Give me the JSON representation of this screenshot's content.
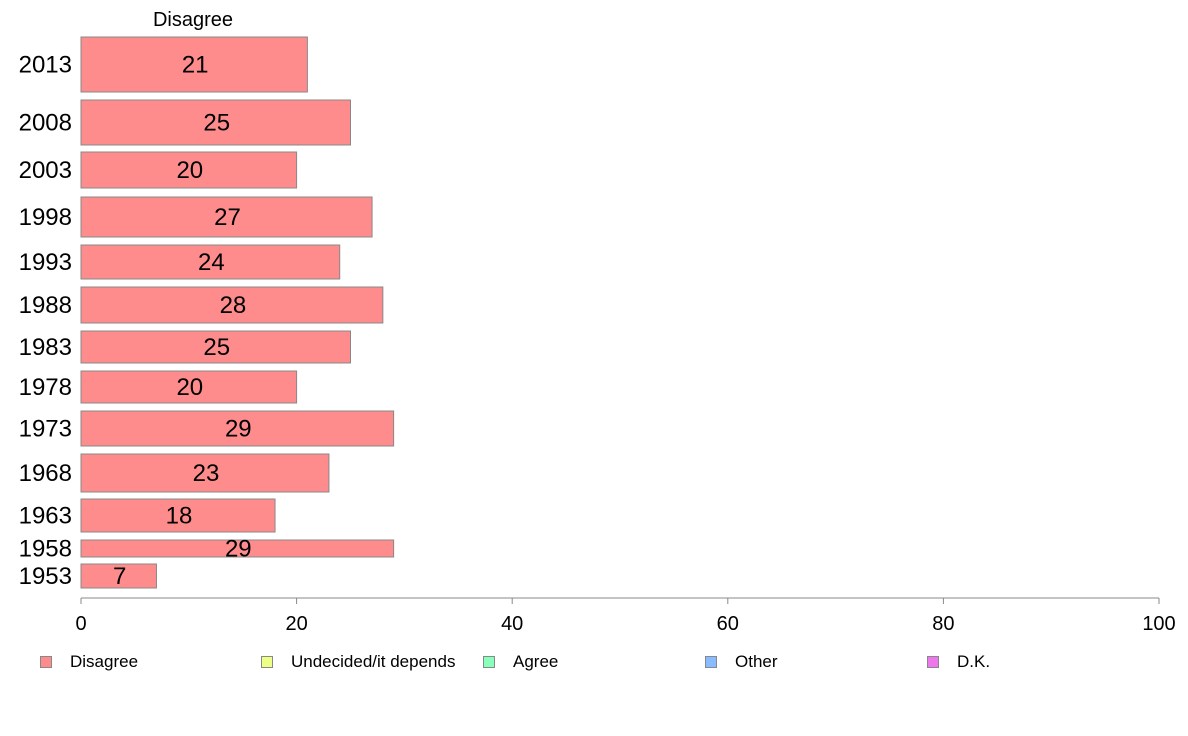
{
  "chart_data": {
    "type": "bar",
    "orientation": "horizontal",
    "column_header": "Disagree",
    "categories": [
      "2013",
      "2008",
      "2003",
      "1998",
      "1993",
      "1988",
      "1983",
      "1978",
      "1973",
      "1968",
      "1963",
      "1958",
      "1953"
    ],
    "series": [
      {
        "name": "Disagree",
        "color": "#ff8c8c",
        "values": [
          21,
          25,
          20,
          27,
          24,
          28,
          25,
          20,
          29,
          23,
          18,
          29,
          7
        ]
      }
    ],
    "xlim": [
      0,
      100
    ],
    "xticks": [
      "0",
      "20",
      "40",
      "60",
      "80",
      "100"
    ],
    "grid": false
  },
  "legend": [
    {
      "label": "Disagree",
      "color": "#ff8c8c"
    },
    {
      "label": "Undecided/it depends",
      "color": "#eeff88"
    },
    {
      "label": "Agree",
      "color": "#88ffbb"
    },
    {
      "label": "Other",
      "color": "#88bbff"
    },
    {
      "label": "D.K.",
      "color": "#ee77ee"
    }
  ]
}
